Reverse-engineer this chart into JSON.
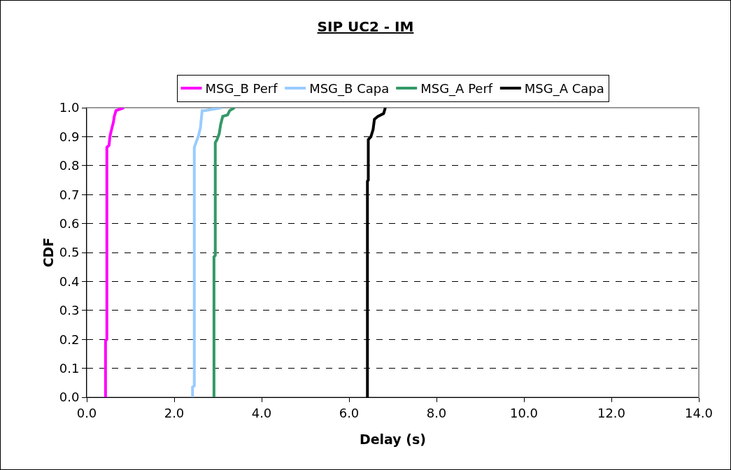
{
  "chart_data": {
    "type": "line",
    "title": "SIP UC2 - IM",
    "xlabel": "Delay (s)",
    "ylabel": "CDF",
    "xlim": [
      0,
      14
    ],
    "xticks": [
      {
        "value": 0,
        "label": "0.0"
      },
      {
        "value": 2,
        "label": "2.0"
      },
      {
        "value": 4,
        "label": "4.0"
      },
      {
        "value": 6,
        "label": "6.0"
      },
      {
        "value": 8,
        "label": "8.0"
      },
      {
        "value": 10,
        "label": "10.0"
      },
      {
        "value": 12,
        "label": "12.0"
      },
      {
        "value": 14,
        "label": "14.0"
      }
    ],
    "ylim": [
      0,
      1
    ],
    "yticks": [
      {
        "value": 0,
        "label": "0.0"
      },
      {
        "value": 0.1,
        "label": "0.1"
      },
      {
        "value": 0.2,
        "label": "0.2"
      },
      {
        "value": 0.3,
        "label": "0.3"
      },
      {
        "value": 0.4,
        "label": "0.4"
      },
      {
        "value": 0.5,
        "label": "0.5"
      },
      {
        "value": 0.6,
        "label": "0.6"
      },
      {
        "value": 0.7,
        "label": "0.7"
      },
      {
        "value": 0.8,
        "label": "0.8"
      },
      {
        "value": 0.9,
        "label": "0.9"
      },
      {
        "value": 1,
        "label": "1.0"
      }
    ],
    "grid": "y",
    "legend": "top",
    "marker": "none",
    "line_style": "solid",
    "series": [
      {
        "name": "MSG_B Perf",
        "color": "#ff00ff",
        "x": [
          0.43,
          0.43,
          0.46,
          0.46,
          0.51,
          0.53,
          0.56,
          0.61,
          0.63,
          0.67,
          0.85
        ],
        "values": [
          0,
          0.195,
          0.2,
          0.863,
          0.87,
          0.9,
          0.92,
          0.95,
          0.97,
          0.99,
          1
        ]
      },
      {
        "name": "MSG_B Capa",
        "color": "#99ccff",
        "x": [
          2.42,
          2.42,
          2.46,
          2.46,
          2.5,
          2.55,
          2.6,
          2.62,
          2.64,
          2.69,
          3.09
        ],
        "values": [
          0,
          0.035,
          0.04,
          0.863,
          0.88,
          0.9,
          0.93,
          0.96,
          0.99,
          0.99,
          1
        ]
      },
      {
        "name": "MSG_A Perf",
        "color": "#339966",
        "x": [
          2.91,
          2.91,
          2.94,
          2.94,
          2.98,
          3.03,
          3.06,
          3.11,
          3.22,
          3.27,
          3.38
        ],
        "values": [
          0,
          0.485,
          0.49,
          0.879,
          0.89,
          0.91,
          0.94,
          0.97,
          0.975,
          0.99,
          1
        ]
      },
      {
        "name": "MSG_A Capa",
        "color": "#000000",
        "x": [
          6.42,
          6.42,
          6.44,
          6.44,
          6.5,
          6.55,
          6.58,
          6.66,
          6.79,
          6.83
        ],
        "values": [
          0,
          0.746,
          0.75,
          0.89,
          0.9,
          0.925,
          0.96,
          0.97,
          0.98,
          1
        ]
      }
    ]
  }
}
